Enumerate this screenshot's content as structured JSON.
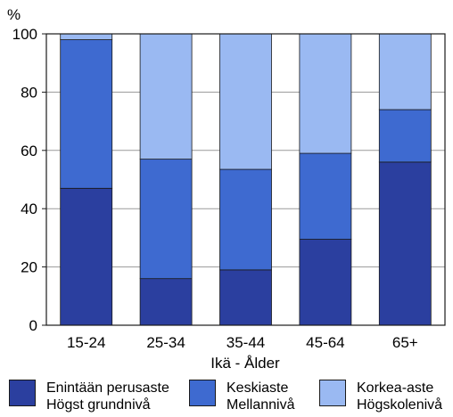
{
  "chart_data": {
    "type": "bar",
    "stacked": true,
    "ylabel": "%",
    "xlabel": "Ikä - Ålder",
    "ylim": [
      0,
      100
    ],
    "yticks": [
      0,
      20,
      40,
      60,
      80,
      100
    ],
    "grid": true,
    "categories": [
      "15-24",
      "25-34",
      "35-44",
      "45-64",
      "65+"
    ],
    "series": [
      {
        "name": "Enintään perusaste Högst grundnivå",
        "values": [
          47,
          16,
          19,
          29.5,
          56
        ],
        "color": "#2b3f9f"
      },
      {
        "name": "Keskiaste Mellannivå",
        "values": [
          51,
          41,
          34.5,
          29.5,
          18
        ],
        "color": "#3e6ad0"
      },
      {
        "name": "Korkea-aste Högskolenivå",
        "values": [
          2,
          43,
          46.5,
          41,
          26
        ],
        "color": "#9ab9f2"
      }
    ]
  },
  "legend": [
    {
      "line1": "Enintään perusaste",
      "line2": "Högst grundnivå",
      "color": "#2b3f9f"
    },
    {
      "line1": "Keskiaste",
      "line2": "Mellannivå",
      "color": "#3e6ad0"
    },
    {
      "line1": "Korkea-aste",
      "line2": "Högskolenivå",
      "color": "#9ab9f2"
    }
  ]
}
